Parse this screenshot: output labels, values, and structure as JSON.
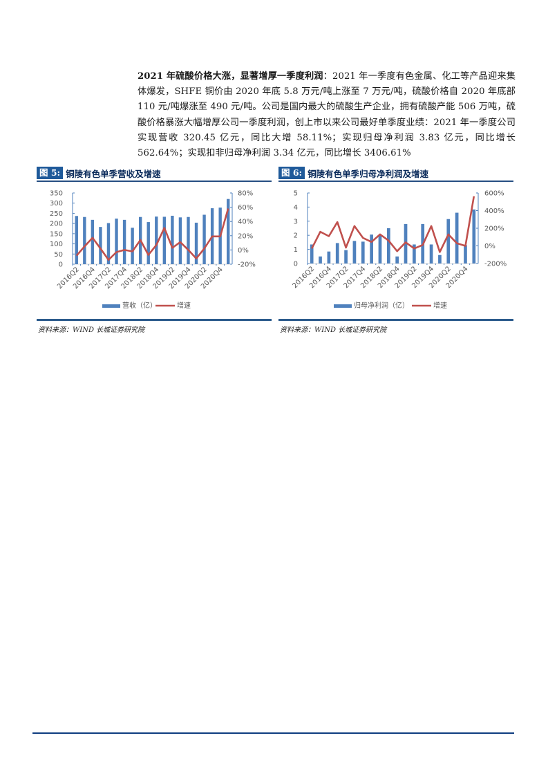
{
  "paragraph": {
    "bold_lead": "2021 年硫酸价格大涨，显著增厚一季度利润",
    "body": "：2021 年一季度有色金属、化工等产品迎来集体爆发，SHFE 铜价由 2020 年底 5.8 万元/吨上涨至 7 万元/吨，硫酸价格自 2020 年底部 110 元/吨爆涨至 490 元/吨。公司是国内最大的硫酸生产企业，拥有硫酸产能 506 万吨，硫酸价格暴涨大幅增厚公司一季度利润，创上市以来公司最好单季度业绩：2021 年一季度公司实现营收 320.45 亿元，同比大增 58.11%；实现归母净利润 3.83 亿元，同比增长 562.64%；实现扣非归母净利润 3.34 亿元，同比增长 3406.61%"
  },
  "figures": [
    {
      "label": "图 5:",
      "caption": "铜陵有色单季营收及增速",
      "source": "资料来源：WIND 长城证券研究院"
    },
    {
      "label": "图 6:",
      "caption": "铜陵有色单季归母净利润及增速",
      "source": "资料来源：WIND 长城证券研究院"
    }
  ],
  "colors": {
    "bar": "#4f81bd",
    "line": "#c0504d",
    "figure_label_bg": "#1f5a9a",
    "rule": "#254e82",
    "footer_rule": "#0d3b7f"
  },
  "chart_data": [
    {
      "type": "bar+line",
      "title": "铜陵有色单季营收及增速",
      "categories": [
        "2016Q2",
        "2016Q3",
        "2016Q4",
        "2017Q1",
        "2017Q2",
        "2017Q3",
        "2017Q4",
        "2018Q1",
        "2018Q2",
        "2018Q3",
        "2018Q4",
        "2019Q1",
        "2019Q2",
        "2019Q3",
        "2019Q4",
        "2020Q1",
        "2020Q2",
        "2020Q3",
        "2020Q4",
        "2021Q1"
      ],
      "x_tick_labels": [
        "2016Q2",
        "2016Q4",
        "2017Q2",
        "2017Q4",
        "2018Q2",
        "2018Q4",
        "2019Q2",
        "2019Q4",
        "2020Q2",
        "2020Q4"
      ],
      "series": [
        {
          "name": "营收（亿）",
          "type": "bar",
          "axis": "left",
          "values": [
            237,
            232,
            218,
            183,
            202,
            224,
            218,
            179,
            232,
            207,
            234,
            233,
            238,
            230,
            232,
            204,
            243,
            275,
            278,
            320.45
          ]
        },
        {
          "name": "增速",
          "type": "line",
          "axis": "right",
          "unit": "%",
          "values": [
            -8,
            5,
            17,
            2,
            -14,
            -3,
            0,
            -2,
            14,
            -7,
            7,
            31,
            3,
            11,
            0,
            -12,
            2,
            19,
            19,
            58.11
          ]
        }
      ],
      "y_left": {
        "min": 0,
        "max": 350,
        "ticks": [
          "0",
          "50",
          "100",
          "150",
          "200",
          "250",
          "300",
          "350"
        ]
      },
      "y_right": {
        "min": -20,
        "max": 80,
        "ticks": [
          "-20%",
          "0%",
          "20%",
          "40%",
          "60%",
          "80%"
        ]
      },
      "legend": [
        "营收（亿）",
        "增速"
      ],
      "legend_position": "bottom",
      "grid": false
    },
    {
      "type": "bar+line",
      "title": "铜陵有色单季归母净利润及增速",
      "categories": [
        "2016Q2",
        "2016Q3",
        "2016Q4",
        "2017Q1",
        "2017Q2",
        "2017Q3",
        "2017Q4",
        "2018Q1",
        "2018Q2",
        "2018Q3",
        "2018Q4",
        "2019Q1",
        "2019Q2",
        "2019Q3",
        "2019Q4",
        "2020Q1",
        "2020Q2",
        "2020Q3",
        "2020Q4",
        "2021Q1"
      ],
      "x_tick_labels": [
        "2016Q2",
        "2016Q4",
        "2017Q2",
        "2017Q4",
        "2018Q2",
        "2018Q4",
        "2019Q2",
        "2019Q4",
        "2020Q2",
        "2020Q4"
      ],
      "series": [
        {
          "name": "归母净利润（亿）",
          "type": "bar",
          "axis": "left",
          "values": [
            1.35,
            0.5,
            0.85,
            1.45,
            0.95,
            1.6,
            1.55,
            2.05,
            2.05,
            2.5,
            0.5,
            2.8,
            1.35,
            2.8,
            1.35,
            0.6,
            3.15,
            3.6,
            1.3,
            3.83
          ]
        },
        {
          "name": "增速",
          "type": "line",
          "axis": "right",
          "unit": "%",
          "values": [
            -30,
            160,
            110,
            270,
            -20,
            225,
            90,
            45,
            130,
            60,
            -60,
            40,
            -30,
            10,
            225,
            -70,
            130,
            30,
            0,
            562.64
          ]
        }
      ],
      "y_left": {
        "min": 0,
        "max": 5,
        "ticks": [
          "0",
          "1",
          "2",
          "3",
          "4",
          "5"
        ]
      },
      "y_right": {
        "min": -200,
        "max": 600,
        "ticks": [
          "-200%",
          "0%",
          "200%",
          "400%",
          "600%"
        ]
      },
      "legend": [
        "归母净利润（亿）",
        "增速"
      ],
      "legend_position": "bottom",
      "grid": false
    }
  ]
}
